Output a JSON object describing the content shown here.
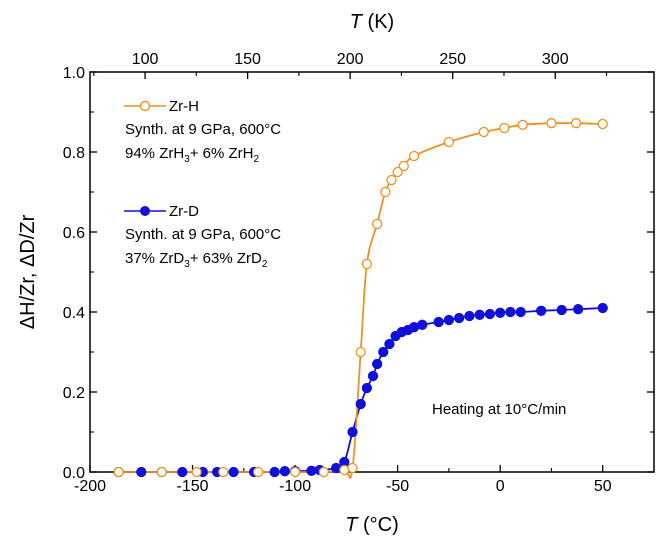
{
  "chart_data": {
    "type": "line",
    "xlabel": "T (°C)",
    "xlabel_sym": "T",
    "xlabel_unit": " (°C)",
    "x2label": "T (K)",
    "x2label_sym": "T",
    "x2label_unit": " (K)",
    "ylabel": "ΔH/Zr,  ΔD/Zr",
    "xlim": [
      -200,
      75
    ],
    "ylim": [
      0,
      1.0
    ],
    "x_ticks": [
      -200,
      -150,
      -100,
      -50,
      0,
      50
    ],
    "x_tick_labels": [
      "-200",
      "-150",
      "-100",
      "-50",
      "0",
      "50"
    ],
    "x2_ticks_K": [
      100,
      150,
      200,
      250,
      300
    ],
    "x2_tick_labels": [
      "100",
      "150",
      "200",
      "250",
      "300"
    ],
    "y_ticks": [
      0.0,
      0.2,
      0.4,
      0.6,
      0.8,
      1.0
    ],
    "y_tick_labels": [
      "0.0",
      "0.2",
      "0.4",
      "0.6",
      "0.8",
      "1.0"
    ],
    "annotation": "Heating at 10°C/min",
    "series": [
      {
        "name": "Zr-H",
        "color": "#f0901e",
        "marker": "open-circle",
        "desc_line1": "Synth. at 9 GPa, 600°C",
        "desc_line2": {
          "pct1": "94% ZrH",
          "sub1": "3",
          "mid": "+ 6% ZrH",
          "sub2": "2"
        },
        "points": [
          [
            -186,
            0.0
          ],
          [
            -165,
            0.0
          ],
          [
            -148,
            0.0
          ],
          [
            -135,
            0.0
          ],
          [
            -118,
            0.0
          ],
          [
            -100,
            0.0
          ],
          [
            -86,
            0.0
          ],
          [
            -76,
            0.005
          ],
          [
            -72,
            0.01
          ],
          [
            -68,
            0.3
          ],
          [
            -65,
            0.52
          ],
          [
            -60,
            0.62
          ],
          [
            -56,
            0.7
          ],
          [
            -53,
            0.73
          ],
          [
            -50,
            0.75
          ],
          [
            -47,
            0.765
          ],
          [
            -42,
            0.79
          ],
          [
            -25,
            0.825
          ],
          [
            -8,
            0.85
          ],
          [
            2,
            0.86
          ],
          [
            11,
            0.868
          ],
          [
            25,
            0.872
          ],
          [
            37,
            0.872
          ],
          [
            50,
            0.87
          ]
        ]
      },
      {
        "name": "Zr-D",
        "color": "#1010d8",
        "marker": "filled-circle",
        "desc_line1": "Synth. at 9 GPa, 600°C",
        "desc_line2": {
          "pct1": "37% ZrD",
          "sub1": "3",
          "mid": "+ 63% ZrD",
          "sub2": "2"
        },
        "points": [
          [
            -186,
            0.0
          ],
          [
            -175,
            0.0
          ],
          [
            -165,
            0.0
          ],
          [
            -155,
            0.0
          ],
          [
            -145,
            0.0
          ],
          [
            -138,
            0.0
          ],
          [
            -130,
            0.0
          ],
          [
            -120,
            0.0
          ],
          [
            -110,
            0.0
          ],
          [
            -105,
            0.002
          ],
          [
            -100,
            0.002
          ],
          [
            -92,
            0.003
          ],
          [
            -88,
            0.005
          ],
          [
            -80,
            0.01
          ],
          [
            -76,
            0.025
          ],
          [
            -72,
            0.1
          ],
          [
            -68,
            0.17
          ],
          [
            -65,
            0.21
          ],
          [
            -62,
            0.24
          ],
          [
            -60,
            0.27
          ],
          [
            -57,
            0.3
          ],
          [
            -54,
            0.32
          ],
          [
            -51,
            0.34
          ],
          [
            -48,
            0.35
          ],
          [
            -45,
            0.355
          ],
          [
            -42,
            0.362
          ],
          [
            -38,
            0.368
          ],
          [
            -30,
            0.375
          ],
          [
            -25,
            0.38
          ],
          [
            -20,
            0.385
          ],
          [
            -15,
            0.39
          ],
          [
            -10,
            0.393
          ],
          [
            -5,
            0.395
          ],
          [
            0,
            0.398
          ],
          [
            5,
            0.4
          ],
          [
            10,
            0.4
          ],
          [
            20,
            0.403
          ],
          [
            30,
            0.405
          ],
          [
            38,
            0.407
          ],
          [
            50,
            0.41
          ]
        ]
      }
    ]
  }
}
